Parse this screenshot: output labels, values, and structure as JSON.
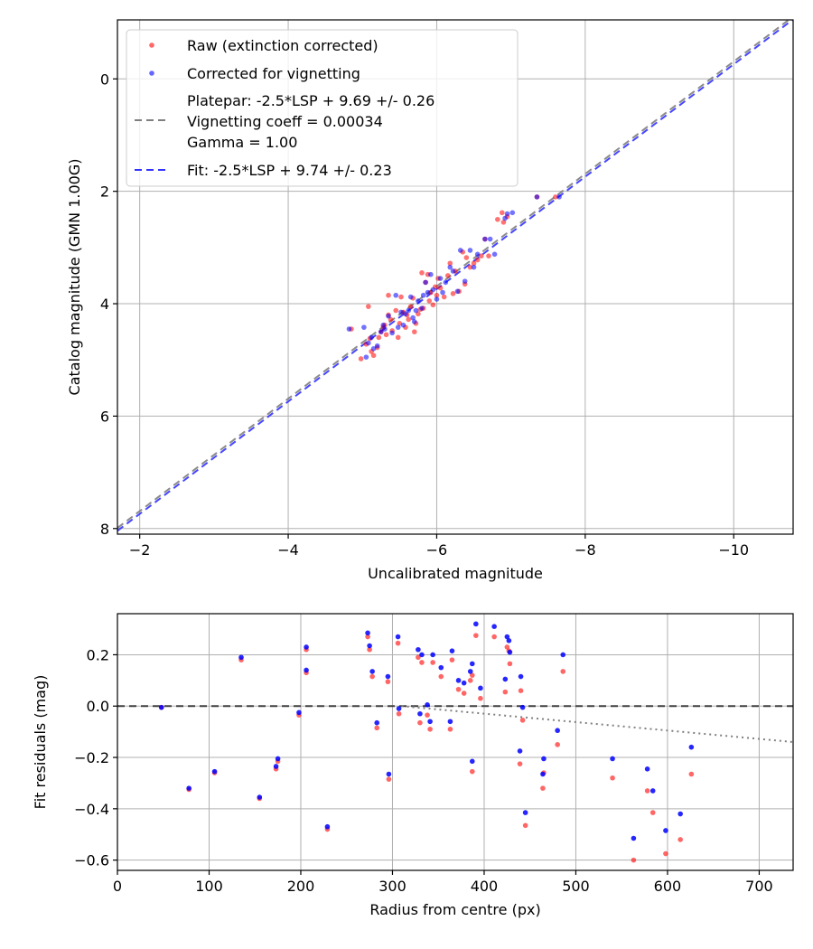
{
  "chart_data": [
    {
      "type": "scatter",
      "id": "top",
      "xlabel": "Uncalibrated magnitude",
      "ylabel": "Catalog magnitude (GMN 1.00G)",
      "xlim": [
        -1.7,
        -10.8
      ],
      "ylim": [
        8.1,
        -1.05
      ],
      "xticks": [
        -2,
        -4,
        -6,
        -8,
        -10
      ],
      "yticks": [
        0,
        2,
        4,
        6,
        8
      ],
      "xtick_labels": [
        "−2",
        "−4",
        "−6",
        "−8",
        "−10"
      ],
      "ytick_labels": [
        "0",
        "2",
        "4",
        "6",
        "8"
      ],
      "grid": true,
      "legend": {
        "position": "top-left",
        "entries": [
          {
            "kind": "marker",
            "color": "#ff0000",
            "label": "Raw (extinction corrected)"
          },
          {
            "kind": "marker",
            "color": "#0000ff",
            "label": "Corrected for vignetting"
          },
          {
            "kind": "dash",
            "color": "#7f7f7f",
            "lines": [
              "Platepar: -2.5*LSP + 9.69 +/- 0.26",
              "Vignetting coeff = 0.00034",
              "Gamma = 1.00"
            ]
          },
          {
            "kind": "dash",
            "color": "#3333ff",
            "label": "Fit: -2.5*LSP + 9.74 +/- 0.23"
          }
        ]
      },
      "lines": [
        {
          "name": "Platepar",
          "color": "#7f7f7f",
          "intercept": 9.69,
          "slope": 1.0
        },
        {
          "name": "Fit",
          "color": "#3333ff",
          "intercept": 9.74,
          "slope": 1.0
        }
      ],
      "series": [
        {
          "name": "Raw (extinction corrected)",
          "color": "#ff0000",
          "points": [
            [
              -4.85,
              4.45
            ],
            [
              -4.98,
              4.98
            ],
            [
              -5.05,
              4.72
            ],
            [
              -5.08,
              4.05
            ],
            [
              -5.1,
              4.62
            ],
            [
              -5.12,
              4.85
            ],
            [
              -5.15,
              4.92
            ],
            [
              -5.2,
              4.78
            ],
            [
              -5.22,
              4.6
            ],
            [
              -5.25,
              4.5
            ],
            [
              -5.28,
              4.42
            ],
            [
              -5.3,
              4.38
            ],
            [
              -5.32,
              4.55
            ],
            [
              -5.35,
              4.2
            ],
            [
              -5.35,
              3.85
            ],
            [
              -5.38,
              4.28
            ],
            [
              -5.4,
              4.48
            ],
            [
              -5.45,
              4.12
            ],
            [
              -5.48,
              4.6
            ],
            [
              -5.5,
              4.35
            ],
            [
              -5.52,
              3.88
            ],
            [
              -5.55,
              4.15
            ],
            [
              -5.58,
              4.42
            ],
            [
              -5.6,
              4.2
            ],
            [
              -5.62,
              4.28
            ],
            [
              -5.65,
              4.05
            ],
            [
              -5.68,
              3.9
            ],
            [
              -5.7,
              4.5
            ],
            [
              -5.72,
              4.35
            ],
            [
              -5.75,
              4.18
            ],
            [
              -5.78,
              4.1
            ],
            [
              -5.8,
              3.45
            ],
            [
              -5.82,
              4.08
            ],
            [
              -5.85,
              3.62
            ],
            [
              -5.88,
              3.48
            ],
            [
              -5.9,
              3.95
            ],
            [
              -5.92,
              3.8
            ],
            [
              -5.95,
              4.02
            ],
            [
              -5.98,
              3.7
            ],
            [
              -6.0,
              3.85
            ],
            [
              -6.02,
              3.55
            ],
            [
              -6.05,
              3.72
            ],
            [
              -6.1,
              3.88
            ],
            [
              -6.15,
              3.5
            ],
            [
              -6.18,
              3.28
            ],
            [
              -6.22,
              3.82
            ],
            [
              -6.25,
              3.42
            ],
            [
              -6.3,
              3.78
            ],
            [
              -6.35,
              3.08
            ],
            [
              -6.38,
              3.65
            ],
            [
              -6.4,
              3.18
            ],
            [
              -6.45,
              3.35
            ],
            [
              -6.5,
              3.28
            ],
            [
              -6.55,
              3.22
            ],
            [
              -6.6,
              3.15
            ],
            [
              -6.65,
              2.85
            ],
            [
              -6.7,
              3.15
            ],
            [
              -6.82,
              2.5
            ],
            [
              -6.88,
              2.38
            ],
            [
              -6.9,
              2.55
            ],
            [
              -6.95,
              2.45
            ],
            [
              -7.35,
              2.1
            ],
            [
              -7.6,
              2.1
            ]
          ]
        },
        {
          "name": "Corrected for vignetting",
          "color": "#0000ff",
          "points": [
            [
              -4.82,
              4.45
            ],
            [
              -5.02,
              4.42
            ],
            [
              -5.05,
              4.95
            ],
            [
              -5.08,
              4.7
            ],
            [
              -5.12,
              4.6
            ],
            [
              -5.15,
              4.8
            ],
            [
              -5.2,
              4.75
            ],
            [
              -5.25,
              4.5
            ],
            [
              -5.28,
              4.38
            ],
            [
              -5.3,
              4.45
            ],
            [
              -5.35,
              4.22
            ],
            [
              -5.4,
              4.52
            ],
            [
              -5.45,
              3.85
            ],
            [
              -5.48,
              4.42
            ],
            [
              -5.52,
              4.15
            ],
            [
              -5.55,
              4.38
            ],
            [
              -5.58,
              4.18
            ],
            [
              -5.62,
              4.12
            ],
            [
              -5.65,
              3.88
            ],
            [
              -5.68,
              4.25
            ],
            [
              -5.7,
              4.32
            ],
            [
              -5.72,
              4.12
            ],
            [
              -5.75,
              3.95
            ],
            [
              -5.8,
              4.08
            ],
            [
              -5.82,
              3.85
            ],
            [
              -5.85,
              3.62
            ],
            [
              -5.88,
              3.8
            ],
            [
              -5.92,
              3.48
            ],
            [
              -5.95,
              3.75
            ],
            [
              -6.0,
              3.92
            ],
            [
              -6.05,
              3.55
            ],
            [
              -6.08,
              3.8
            ],
            [
              -6.12,
              3.62
            ],
            [
              -6.18,
              3.35
            ],
            [
              -6.22,
              3.42
            ],
            [
              -6.28,
              3.78
            ],
            [
              -6.32,
              3.05
            ],
            [
              -6.38,
              3.6
            ],
            [
              -6.45,
              3.05
            ],
            [
              -6.5,
              3.35
            ],
            [
              -6.55,
              3.12
            ],
            [
              -6.65,
              2.85
            ],
            [
              -6.72,
              2.85
            ],
            [
              -6.78,
              3.12
            ],
            [
              -6.92,
              2.48
            ],
            [
              -6.95,
              2.4
            ],
            [
              -7.02,
              2.38
            ],
            [
              -7.35,
              2.1
            ],
            [
              -7.65,
              2.1
            ]
          ]
        }
      ]
    },
    {
      "type": "scatter",
      "id": "bottom",
      "xlabel": "Radius from centre (px)",
      "ylabel": "Fit residuals (mag)",
      "xlim": [
        0,
        737
      ],
      "ylim": [
        -0.64,
        0.36
      ],
      "xticks": [
        0,
        100,
        200,
        300,
        400,
        500,
        600,
        700
      ],
      "yticks": [
        0.2,
        0.0,
        -0.2,
        -0.4,
        -0.6
      ],
      "xtick_labels": [
        "0",
        "100",
        "200",
        "300",
        "400",
        "500",
        "600",
        "700"
      ],
      "ytick_labels": [
        "0.2",
        "0.0",
        "−0.2",
        "−0.4",
        "−0.6"
      ],
      "grid": true,
      "lines": [
        {
          "name": "zero",
          "color": "#404040",
          "style": "dashed",
          "x": [
            0,
            737
          ],
          "y": [
            0,
            0
          ]
        },
        {
          "name": "vignetting",
          "color": "#808080",
          "style": "dotted",
          "x": [
            310,
            737
          ],
          "y": [
            0,
            -0.14
          ]
        }
      ],
      "series": [
        {
          "name": "Raw",
          "color": "#ff0000",
          "points": [
            [
              48,
              -0.005
            ],
            [
              78,
              -0.325
            ],
            [
              106,
              -0.26
            ],
            [
              135,
              0.18
            ],
            [
              155,
              -0.36
            ],
            [
              173,
              -0.245
            ],
            [
              175,
              -0.215
            ],
            [
              198,
              -0.035
            ],
            [
              206,
              0.22
            ],
            [
              206,
              0.13
            ],
            [
              229,
              -0.48
            ],
            [
              273,
              0.27
            ],
            [
              275,
              0.22
            ],
            [
              278,
              0.115
            ],
            [
              283,
              -0.085
            ],
            [
              295,
              0.095
            ],
            [
              296,
              -0.285
            ],
            [
              306,
              0.245
            ],
            [
              307,
              -0.03
            ],
            [
              328,
              0.19
            ],
            [
              330,
              -0.065
            ],
            [
              332,
              0.17
            ],
            [
              338,
              -0.035
            ],
            [
              341,
              -0.09
            ],
            [
              344,
              0.17
            ],
            [
              353,
              0.115
            ],
            [
              363,
              -0.09
            ],
            [
              365,
              0.18
            ],
            [
              372,
              0.065
            ],
            [
              378,
              0.05
            ],
            [
              385,
              0.1
            ],
            [
              387,
              0.12
            ],
            [
              387,
              -0.255
            ],
            [
              391,
              0.275
            ],
            [
              396,
              0.03
            ],
            [
              411,
              0.27
            ],
            [
              423,
              0.055
            ],
            [
              425,
              0.23
            ],
            [
              427,
              0.215
            ],
            [
              428,
              0.165
            ],
            [
              439,
              -0.225
            ],
            [
              440,
              0.06
            ],
            [
              442,
              -0.055
            ],
            [
              445,
              -0.465
            ],
            [
              464,
              -0.32
            ],
            [
              465,
              -0.26
            ],
            [
              480,
              -0.15
            ],
            [
              486,
              0.135
            ],
            [
              540,
              -0.28
            ],
            [
              563,
              -0.6
            ],
            [
              578,
              -0.33
            ],
            [
              584,
              -0.415
            ],
            [
              598,
              -0.575
            ],
            [
              614,
              -0.52
            ],
            [
              626,
              -0.265
            ]
          ]
        },
        {
          "name": "Corrected",
          "color": "#0000ff",
          "points": [
            [
              48,
              -0.005
            ],
            [
              78,
              -0.32
            ],
            [
              106,
              -0.255
            ],
            [
              135,
              0.19
            ],
            [
              155,
              -0.355
            ],
            [
              173,
              -0.235
            ],
            [
              175,
              -0.205
            ],
            [
              198,
              -0.025
            ],
            [
              206,
              0.23
            ],
            [
              206,
              0.14
            ],
            [
              229,
              -0.47
            ],
            [
              273,
              0.285
            ],
            [
              275,
              0.235
            ],
            [
              278,
              0.135
            ],
            [
              283,
              -0.065
            ],
            [
              295,
              0.115
            ],
            [
              296,
              -0.265
            ],
            [
              306,
              0.27
            ],
            [
              307,
              -0.01
            ],
            [
              328,
              0.22
            ],
            [
              330,
              -0.03
            ],
            [
              332,
              0.2
            ],
            [
              338,
              0.005
            ],
            [
              341,
              -0.06
            ],
            [
              344,
              0.2
            ],
            [
              353,
              0.15
            ],
            [
              363,
              -0.06
            ],
            [
              365,
              0.215
            ],
            [
              372,
              0.1
            ],
            [
              378,
              0.09
            ],
            [
              385,
              0.135
            ],
            [
              387,
              0.165
            ],
            [
              387,
              -0.215
            ],
            [
              391,
              0.32
            ],
            [
              396,
              0.07
            ],
            [
              411,
              0.31
            ],
            [
              423,
              0.105
            ],
            [
              425,
              0.27
            ],
            [
              427,
              0.255
            ],
            [
              428,
              0.21
            ],
            [
              439,
              -0.175
            ],
            [
              440,
              0.115
            ],
            [
              442,
              -0.005
            ],
            [
              445,
              -0.415
            ],
            [
              464,
              -0.265
            ],
            [
              465,
              -0.205
            ],
            [
              480,
              -0.095
            ],
            [
              486,
              0.2
            ],
            [
              540,
              -0.205
            ],
            [
              563,
              -0.515
            ],
            [
              578,
              -0.245
            ],
            [
              584,
              -0.33
            ],
            [
              598,
              -0.485
            ],
            [
              614,
              -0.42
            ],
            [
              626,
              -0.16
            ]
          ]
        }
      ]
    }
  ]
}
